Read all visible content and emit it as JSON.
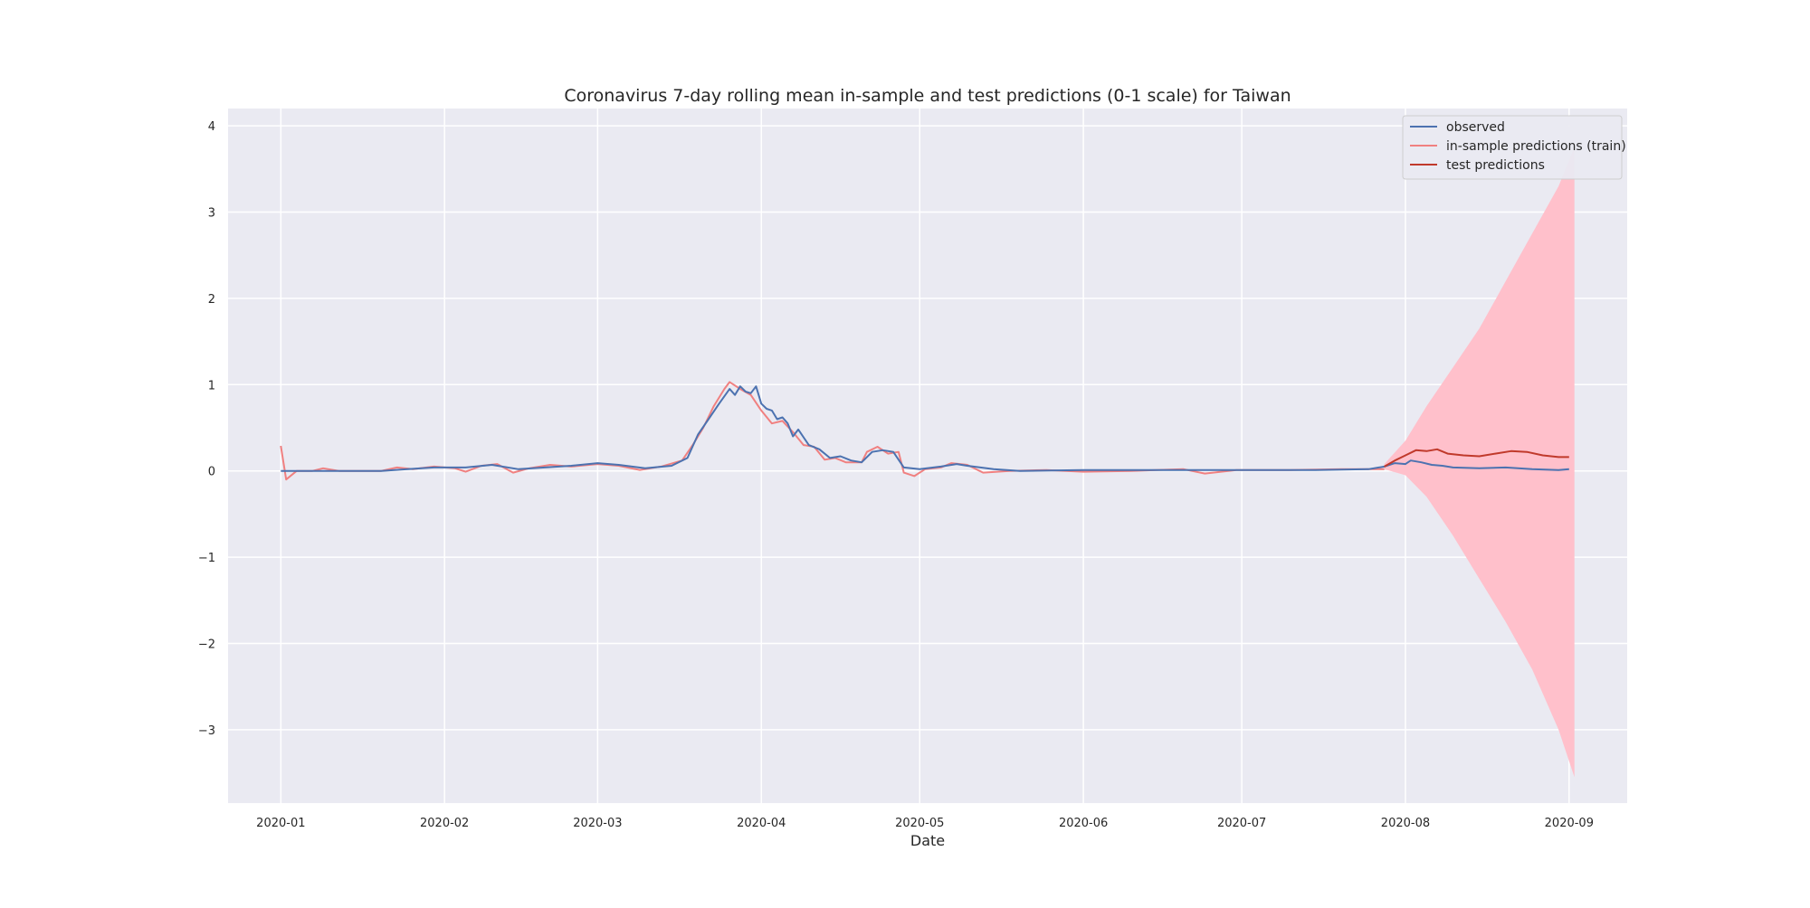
{
  "chart_data": {
    "type": "line",
    "title": "Coronavirus 7-day rolling mean in-sample and test predictions (0-1 scale) for Taiwan",
    "xlabel": "Date",
    "ylabel": "",
    "xlim": [
      "2019-12-22",
      "2020-09-12"
    ],
    "ylim": [
      -3.85,
      4.2
    ],
    "x_ticks": [
      "2020-01-01",
      "2020-02-01",
      "2020-03-01",
      "2020-04-01",
      "2020-05-01",
      "2020-06-01",
      "2020-07-01",
      "2020-08-01",
      "2020-09-01"
    ],
    "x_tick_labels": [
      "2020-01",
      "2020-02",
      "2020-03",
      "2020-04",
      "2020-05",
      "2020-06",
      "2020-07",
      "2020-08",
      "2020-09"
    ],
    "y_ticks": [
      4,
      3,
      2,
      1,
      0,
      -1,
      -2,
      -3
    ],
    "y_tick_labels": [
      "4",
      "3",
      "2",
      "1",
      "0",
      "−1",
      "−2",
      "−3"
    ],
    "grid": true,
    "background": "#eaeaf2",
    "legend_position": "top-right",
    "series": [
      {
        "name": "observed",
        "color": "#4c72b0",
        "points": [
          [
            "2020-01-01",
            0.0
          ],
          [
            "2020-01-10",
            0.0
          ],
          [
            "2020-01-20",
            0.0
          ],
          [
            "2020-01-25",
            0.02
          ],
          [
            "2020-01-30",
            0.04
          ],
          [
            "2020-02-05",
            0.04
          ],
          [
            "2020-02-10",
            0.07
          ],
          [
            "2020-02-15",
            0.02
          ],
          [
            "2020-02-20",
            0.04
          ],
          [
            "2020-02-25",
            0.06
          ],
          [
            "2020-03-01",
            0.09
          ],
          [
            "2020-03-05",
            0.07
          ],
          [
            "2020-03-10",
            0.03
          ],
          [
            "2020-03-15",
            0.06
          ],
          [
            "2020-03-18",
            0.15
          ],
          [
            "2020-03-20",
            0.42
          ],
          [
            "2020-03-22",
            0.6
          ],
          [
            "2020-03-24",
            0.78
          ],
          [
            "2020-03-26",
            0.95
          ],
          [
            "2020-03-27",
            0.88
          ],
          [
            "2020-03-28",
            0.98
          ],
          [
            "2020-03-29",
            0.92
          ],
          [
            "2020-03-30",
            0.9
          ],
          [
            "2020-03-31",
            0.98
          ],
          [
            "2020-04-01",
            0.78
          ],
          [
            "2020-04-02",
            0.72
          ],
          [
            "2020-04-03",
            0.7
          ],
          [
            "2020-04-04",
            0.6
          ],
          [
            "2020-04-05",
            0.62
          ],
          [
            "2020-04-06",
            0.55
          ],
          [
            "2020-04-07",
            0.4
          ],
          [
            "2020-04-08",
            0.48
          ],
          [
            "2020-04-10",
            0.3
          ],
          [
            "2020-04-12",
            0.25
          ],
          [
            "2020-04-14",
            0.15
          ],
          [
            "2020-04-16",
            0.17
          ],
          [
            "2020-04-18",
            0.12
          ],
          [
            "2020-04-20",
            0.1
          ],
          [
            "2020-04-22",
            0.22
          ],
          [
            "2020-04-24",
            0.24
          ],
          [
            "2020-04-26",
            0.22
          ],
          [
            "2020-04-28",
            0.04
          ],
          [
            "2020-05-01",
            0.02
          ],
          [
            "2020-05-05",
            0.05
          ],
          [
            "2020-05-08",
            0.08
          ],
          [
            "2020-05-10",
            0.06
          ],
          [
            "2020-05-15",
            0.02
          ],
          [
            "2020-05-20",
            0.0
          ],
          [
            "2020-06-01",
            0.01
          ],
          [
            "2020-06-15",
            0.01
          ],
          [
            "2020-06-25",
            0.01
          ],
          [
            "2020-07-05",
            0.01
          ],
          [
            "2020-07-15",
            0.01
          ],
          [
            "2020-07-25",
            0.02
          ],
          [
            "2020-07-28",
            0.05
          ],
          [
            "2020-07-30",
            0.09
          ],
          [
            "2020-08-01",
            0.08
          ],
          [
            "2020-08-02",
            0.12
          ],
          [
            "2020-08-04",
            0.1
          ],
          [
            "2020-08-06",
            0.07
          ],
          [
            "2020-08-08",
            0.06
          ],
          [
            "2020-08-10",
            0.04
          ],
          [
            "2020-08-15",
            0.03
          ],
          [
            "2020-08-20",
            0.04
          ],
          [
            "2020-08-25",
            0.02
          ],
          [
            "2020-08-30",
            0.01
          ],
          [
            "2020-09-01",
            0.02
          ]
        ]
      },
      {
        "name": "in-sample predictions (train)",
        "color": "#f08080",
        "points": [
          [
            "2020-01-01",
            0.29
          ],
          [
            "2020-01-02",
            -0.1
          ],
          [
            "2020-01-04",
            0.0
          ],
          [
            "2020-01-07",
            0.0
          ],
          [
            "2020-01-09",
            0.03
          ],
          [
            "2020-01-12",
            0.0
          ],
          [
            "2020-01-20",
            0.0
          ],
          [
            "2020-01-23",
            0.04
          ],
          [
            "2020-01-26",
            0.02
          ],
          [
            "2020-01-30",
            0.05
          ],
          [
            "2020-02-03",
            0.03
          ],
          [
            "2020-02-05",
            -0.01
          ],
          [
            "2020-02-08",
            0.06
          ],
          [
            "2020-02-11",
            0.08
          ],
          [
            "2020-02-14",
            -0.02
          ],
          [
            "2020-02-17",
            0.03
          ],
          [
            "2020-02-21",
            0.07
          ],
          [
            "2020-02-25",
            0.05
          ],
          [
            "2020-03-01",
            0.08
          ],
          [
            "2020-03-05",
            0.06
          ],
          [
            "2020-03-09",
            0.01
          ],
          [
            "2020-03-13",
            0.05
          ],
          [
            "2020-03-17",
            0.12
          ],
          [
            "2020-03-19",
            0.3
          ],
          [
            "2020-03-21",
            0.5
          ],
          [
            "2020-03-23",
            0.75
          ],
          [
            "2020-03-25",
            0.95
          ],
          [
            "2020-03-26",
            1.03
          ],
          [
            "2020-03-28",
            0.95
          ],
          [
            "2020-03-30",
            0.88
          ],
          [
            "2020-04-01",
            0.7
          ],
          [
            "2020-04-03",
            0.55
          ],
          [
            "2020-04-05",
            0.58
          ],
          [
            "2020-04-07",
            0.45
          ],
          [
            "2020-04-09",
            0.3
          ],
          [
            "2020-04-11",
            0.28
          ],
          [
            "2020-04-13",
            0.13
          ],
          [
            "2020-04-15",
            0.15
          ],
          [
            "2020-04-17",
            0.1
          ],
          [
            "2020-04-20",
            0.1
          ],
          [
            "2020-04-21",
            0.22
          ],
          [
            "2020-04-23",
            0.28
          ],
          [
            "2020-04-25",
            0.2
          ],
          [
            "2020-04-27",
            0.22
          ],
          [
            "2020-04-28",
            -0.02
          ],
          [
            "2020-04-30",
            -0.06
          ],
          [
            "2020-05-02",
            0.02
          ],
          [
            "2020-05-05",
            0.04
          ],
          [
            "2020-05-07",
            0.09
          ],
          [
            "2020-05-10",
            0.07
          ],
          [
            "2020-05-13",
            -0.02
          ],
          [
            "2020-05-18",
            0.0
          ],
          [
            "2020-05-25",
            0.01
          ],
          [
            "2020-06-01",
            -0.01
          ],
          [
            "2020-06-10",
            0.0
          ],
          [
            "2020-06-20",
            0.02
          ],
          [
            "2020-06-24",
            -0.03
          ],
          [
            "2020-06-30",
            0.01
          ],
          [
            "2020-07-10",
            0.01
          ],
          [
            "2020-07-20",
            0.02
          ],
          [
            "2020-07-28",
            0.02
          ]
        ]
      },
      {
        "name": "test predictions",
        "color": "#c0392b",
        "points": [
          [
            "2020-07-28",
            0.05
          ],
          [
            "2020-07-30",
            0.12
          ],
          [
            "2020-08-01",
            0.18
          ],
          [
            "2020-08-03",
            0.24
          ],
          [
            "2020-08-05",
            0.23
          ],
          [
            "2020-08-07",
            0.25
          ],
          [
            "2020-08-09",
            0.2
          ],
          [
            "2020-08-12",
            0.18
          ],
          [
            "2020-08-15",
            0.17
          ],
          [
            "2020-08-18",
            0.2
          ],
          [
            "2020-08-21",
            0.23
          ],
          [
            "2020-08-24",
            0.22
          ],
          [
            "2020-08-27",
            0.18
          ],
          [
            "2020-08-30",
            0.16
          ],
          [
            "2020-09-01",
            0.16
          ]
        ]
      }
    ],
    "confidence_band": {
      "color": "#ffc0cb",
      "points": [
        [
          "2020-07-28",
          0.02,
          0.08
        ],
        [
          "2020-08-01",
          -0.05,
          0.35
        ],
        [
          "2020-08-05",
          -0.3,
          0.75
        ],
        [
          "2020-08-10",
          -0.75,
          1.2
        ],
        [
          "2020-08-15",
          -1.25,
          1.65
        ],
        [
          "2020-08-20",
          -1.75,
          2.2
        ],
        [
          "2020-08-25",
          -2.3,
          2.75
        ],
        [
          "2020-08-30",
          -3.0,
          3.3
        ],
        [
          "2020-09-02",
          -3.55,
          3.75
        ]
      ]
    }
  }
}
